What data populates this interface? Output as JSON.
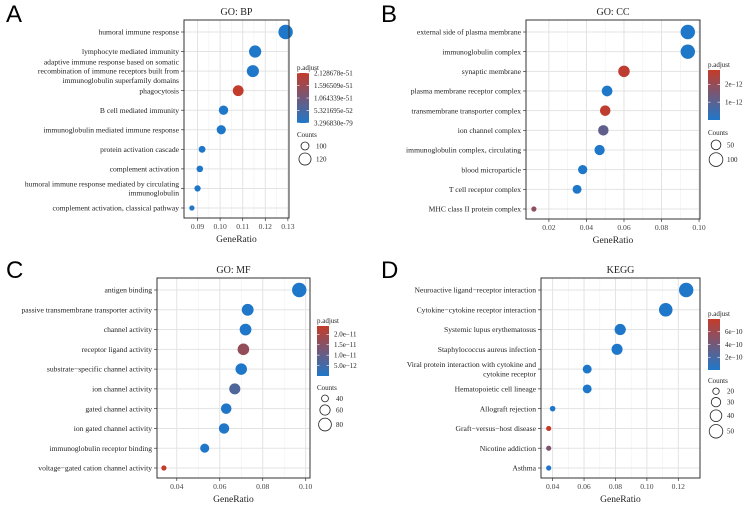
{
  "chart_data": [
    {
      "type": "scatter",
      "panel_label": "A",
      "title": "GO: BP",
      "xlabel": "GeneRatio",
      "xlim": [
        0.084,
        0.1305
      ],
      "xticks": [
        0.09,
        0.1,
        0.11,
        0.12,
        0.13
      ],
      "xtick_labels": [
        "0.09",
        "0.10",
        "0.11",
        "0.12",
        "0.13"
      ],
      "grid": true,
      "legend_position": "right",
      "color_legend": {
        "title": "p.adjust",
        "min": 3.29683e-79,
        "max": 2.128678e-51,
        "ticks": [
          2.128678e-51,
          1.596509e-51,
          1.064339e-51,
          5.321695e-52,
          3.29683e-79
        ],
        "tick_labels": [
          "2.128678e-51",
          "1.596509e-51",
          "1.064339e-51",
          "5.321695e-52",
          "3.296830e-79"
        ]
      },
      "size_legend": {
        "title": "Counts",
        "values": [
          100,
          120
        ],
        "labels": [
          "100",
          "120"
        ]
      },
      "points": [
        {
          "term": [
            "humoral immune response"
          ],
          "x": 0.129,
          "count": 135,
          "padj": 3.3e-79
        },
        {
          "term": [
            "lymphocyte mediated immunity"
          ],
          "x": 0.1155,
          "count": 121,
          "padj": 1e-70
        },
        {
          "term": [
            "adaptive immune response based on somatic",
            "recombination of immune receptors built from",
            "immunoglobulin superfamily domains"
          ],
          "x": 0.1145,
          "count": 120,
          "padj": 1e-68
        },
        {
          "term": [
            "phagocytosis"
          ],
          "x": 0.108,
          "count": 113,
          "padj": 2.12e-51
        },
        {
          "term": [
            "B cell mediated immunity"
          ],
          "x": 0.1015,
          "count": 106,
          "padj": 1e-60
        },
        {
          "term": [
            "immunoglobulin mediated immune response"
          ],
          "x": 0.1005,
          "count": 105,
          "padj": 1e-60
        },
        {
          "term": [
            "protein activation cascade"
          ],
          "x": 0.092,
          "count": 96,
          "padj": 1e-62
        },
        {
          "term": [
            "complement activation"
          ],
          "x": 0.091,
          "count": 95,
          "padj": 1e-63
        },
        {
          "term": [
            "humoral immune response mediated by circulating",
            "immunoglobulin"
          ],
          "x": 0.09,
          "count": 94,
          "padj": 1e-62
        },
        {
          "term": [
            "complement activation, classical pathway"
          ],
          "x": 0.0875,
          "count": 91,
          "padj": 1e-62
        }
      ]
    },
    {
      "type": "scatter",
      "panel_label": "B",
      "title": "GO: CC",
      "xlabel": "GeneRatio",
      "xlim": [
        0.0078,
        0.1005
      ],
      "xticks": [
        0.02,
        0.04,
        0.06,
        0.08,
        0.1
      ],
      "xtick_labels": [
        "0.02",
        "0.04",
        "0.06",
        "0.08",
        "0.10"
      ],
      "grid": true,
      "legend_position": "right",
      "color_legend": {
        "title": "p.adjust",
        "min": 1e-20,
        "max": 2.8e-12,
        "ticks": [
          2e-12,
          1e-12
        ],
        "tick_labels": [
          "2e−12",
          "1e−12"
        ]
      },
      "size_legend": {
        "title": "Counts",
        "values": [
          50,
          100
        ],
        "labels": [
          "50",
          "100"
        ]
      },
      "points": [
        {
          "term": [
            "external side of plasma membrane"
          ],
          "x": 0.094,
          "count": 110,
          "padj": 1e-20
        },
        {
          "term": [
            "immunoglobulin complex"
          ],
          "x": 0.094,
          "count": 110,
          "padj": 1e-20
        },
        {
          "term": [
            "synaptic membrane"
          ],
          "x": 0.06,
          "count": 70,
          "padj": 2.7e-12
        },
        {
          "term": [
            "plasma membrane receptor complex"
          ],
          "x": 0.051,
          "count": 60,
          "padj": 1e-15
        },
        {
          "term": [
            "transmembrane transporter complex"
          ],
          "x": 0.05,
          "count": 59,
          "padj": 2.7e-12
        },
        {
          "term": [
            "ion channel complex"
          ],
          "x": 0.049,
          "count": 58,
          "padj": 1.1e-12
        },
        {
          "term": [
            "immunoglobulin complex, circulating"
          ],
          "x": 0.047,
          "count": 56,
          "padj": 1e-16
        },
        {
          "term": [
            "blood microparticle"
          ],
          "x": 0.038,
          "count": 45,
          "padj": 1e-15
        },
        {
          "term": [
            "T cell receptor complex"
          ],
          "x": 0.035,
          "count": 42,
          "padj": 1e-15
        },
        {
          "term": [
            "MHC class II protein complex"
          ],
          "x": 0.012,
          "count": 14,
          "padj": 1.9e-12
        }
      ]
    },
    {
      "type": "scatter",
      "panel_label": "C",
      "title": "GO: MF",
      "xlabel": "GeneRatio",
      "xlim": [
        0.0308,
        0.102
      ],
      "xticks": [
        0.04,
        0.06,
        0.08,
        0.1
      ],
      "xtick_labels": [
        "0.04",
        "0.06",
        "0.08",
        "0.10"
      ],
      "grid": true,
      "legend_position": "right",
      "color_legend": {
        "title": "p.adjust",
        "min": 1e-20,
        "max": 2.4e-11,
        "ticks": [
          2e-11,
          1.5e-11,
          1e-11,
          5e-12
        ],
        "tick_labels": [
          "2.0e−11",
          "1.5e−11",
          "1.0e−11",
          "5.0e−12"
        ]
      },
      "size_legend": {
        "title": "Counts",
        "values": [
          40,
          60,
          80
        ],
        "labels": [
          "40",
          "60",
          "80"
        ]
      },
      "points": [
        {
          "term": [
            "antigen binding"
          ],
          "x": 0.097,
          "count": 95,
          "padj": 1e-20
        },
        {
          "term": [
            "passive transmembrane transporter activity"
          ],
          "x": 0.073,
          "count": 72,
          "padj": 1e-15
        },
        {
          "term": [
            "channel activity"
          ],
          "x": 0.072,
          "count": 71,
          "padj": 1e-15
        },
        {
          "term": [
            "receptor ligand activity"
          ],
          "x": 0.071,
          "count": 70,
          "padj": 1.7e-11
        },
        {
          "term": [
            "substrate−specific channel activity"
          ],
          "x": 0.07,
          "count": 69,
          "padj": 1e-14
        },
        {
          "term": [
            "ion channel activity"
          ],
          "x": 0.067,
          "count": 66,
          "padj": 7e-12
        },
        {
          "term": [
            "gated channel activity"
          ],
          "x": 0.063,
          "count": 62,
          "padj": 1e-13
        },
        {
          "term": [
            "ion gated channel activity"
          ],
          "x": 0.062,
          "count": 61,
          "padj": 1e-13
        },
        {
          "term": [
            "immunoglobulin receptor binding"
          ],
          "x": 0.053,
          "count": 52,
          "padj": 1e-16
        },
        {
          "term": [
            "voltage−gated cation channel activity"
          ],
          "x": 0.034,
          "count": 33,
          "padj": 2.4e-11
        }
      ]
    },
    {
      "type": "scatter",
      "panel_label": "D",
      "title": "KEGG",
      "xlabel": "GeneRatio",
      "xlim": [
        0.0326,
        0.1338
      ],
      "xticks": [
        0.04,
        0.06,
        0.08,
        0.1,
        0.12
      ],
      "xtick_labels": [
        "0.04",
        "0.06",
        "0.08",
        "0.10",
        "0.12"
      ],
      "grid": true,
      "legend_position": "right",
      "color_legend": {
        "title": "p.adjust",
        "min": 1e-20,
        "max": 8e-10,
        "ticks": [
          6e-10,
          4e-10,
          2e-10
        ],
        "tick_labels": [
          "6e−10",
          "4e−10",
          "2e−10"
        ]
      },
      "size_legend": {
        "title": "Counts",
        "values": [
          20,
          30,
          40,
          50
        ],
        "labels": [
          "20",
          "30",
          "40",
          "50"
        ]
      },
      "points": [
        {
          "term": [
            "Neuroactive ligand−receptor interaction"
          ],
          "x": 0.125,
          "count": 55,
          "padj": 1e-15
        },
        {
          "term": [
            "Cytokine−cytokine receptor interaction"
          ],
          "x": 0.112,
          "count": 50,
          "padj": 1e-15
        },
        {
          "term": [
            "Systemic lupus erythematosus"
          ],
          "x": 0.083,
          "count": 38,
          "padj": 1e-15
        },
        {
          "term": [
            "Staphylococcus aureus infection"
          ],
          "x": 0.081,
          "count": 37,
          "padj": 1e-15
        },
        {
          "term": [
            "Viral protein interaction with cytokine and",
            "cytokine receptor"
          ],
          "x": 0.062,
          "count": 28,
          "padj": 1e-14
        },
        {
          "term": [
            "Hematopoietic cell lineage"
          ],
          "x": 0.062,
          "count": 28,
          "padj": 1e-14
        },
        {
          "term": [
            "Allograft rejection"
          ],
          "x": 0.04,
          "count": 18,
          "padj": 1e-13
        },
        {
          "term": [
            "Graft−versus−host disease"
          ],
          "x": 0.0375,
          "count": 17,
          "padj": 8e-10
        },
        {
          "term": [
            "Nicotine addiction"
          ],
          "x": 0.0375,
          "count": 17,
          "padj": 4.5e-10
        },
        {
          "term": [
            "Asthma"
          ],
          "x": 0.0375,
          "count": 17,
          "padj": 1e-13
        }
      ]
    }
  ]
}
